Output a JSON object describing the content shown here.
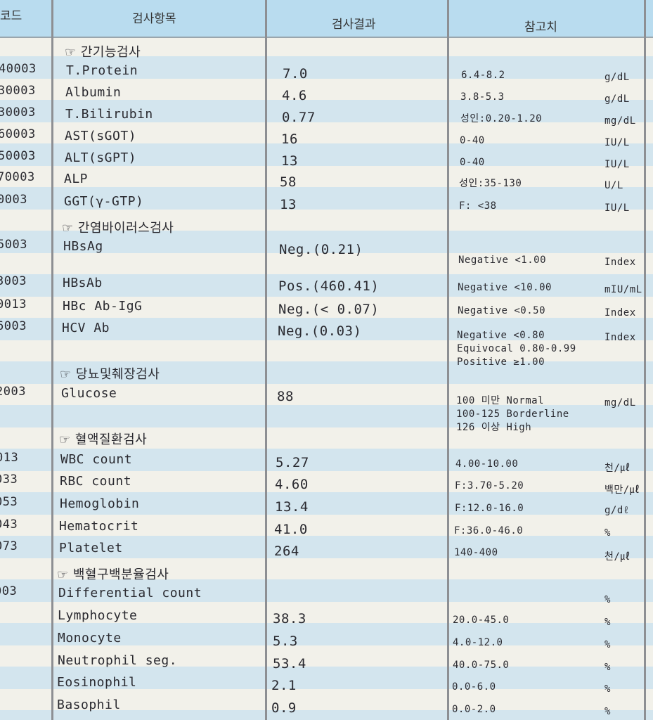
{
  "header": {
    "code": "코드",
    "item": "검사항목",
    "result": "검사결과",
    "reference": "참고치"
  },
  "section_icon": "pointing-hand-icon",
  "rows": [
    {
      "type": "section",
      "label": "☞ 간기능검사"
    },
    {
      "type": "item",
      "code": "40003",
      "item": "T.Protein",
      "result": "7.0",
      "ref": "6.4-8.2",
      "unit": "g/dL"
    },
    {
      "type": "item",
      "code": "30003",
      "item": "Albumin",
      "result": "4.6",
      "ref": "3.8-5.3",
      "unit": "g/dL"
    },
    {
      "type": "item",
      "code": "30003",
      "item": "T.Bilirubin",
      "result": "0.77",
      "ref": "성인:0.20-1.20",
      "unit": "mg/dL"
    },
    {
      "type": "item",
      "code": "60003",
      "item": "AST(sGOT)",
      "result": "16",
      "ref": "0-40",
      "unit": "IU/L"
    },
    {
      "type": "item",
      "code": "50003",
      "item": "ALT(sGPT)",
      "result": "13",
      "ref": "0-40",
      "unit": "IU/L"
    },
    {
      "type": "item",
      "code": "70003",
      "item": "ALP",
      "result": "58",
      "ref": "성인:35-130",
      "unit": "U/L"
    },
    {
      "type": "item",
      "code": "0003",
      "item": "GGT(γ-GTP)",
      "result": "13",
      "ref": "F: <38",
      "unit": "IU/L"
    },
    {
      "type": "section",
      "label": "☞ 간염바이러스검사"
    },
    {
      "type": "item",
      "code": "5003",
      "item": "HBsAg",
      "result": "Neg.(0.21)",
      "ref": "Negative <1.00",
      "unit": "Index"
    },
    {
      "type": "item",
      "code": "3003",
      "item": "HBsAb",
      "result": "Pos.(460.41)",
      "ref": "Negative <10.00",
      "unit": "mIU/mL"
    },
    {
      "type": "item",
      "code": "0013",
      "item": "HBc Ab-IgG",
      "result": "Neg.(< 0.07)",
      "ref": "Negative <0.50",
      "unit": "Index"
    },
    {
      "type": "item",
      "code": "6003",
      "item": "HCV Ab",
      "result": "Neg.(0.03)",
      "ref": "Negative <0.80\nEquivocal 0.80-0.99\nPositive ≥1.00",
      "unit": "Index"
    },
    {
      "type": "section",
      "label": "☞ 당뇨및췌장검사"
    },
    {
      "type": "item",
      "code": "2003",
      "item": "Glucose",
      "result": "88",
      "ref": "100 미만 Normal\n100-125 Borderline\n126 이상 High",
      "unit": "mg/dL"
    },
    {
      "type": "section",
      "label": "☞ 혈액질환검사"
    },
    {
      "type": "item",
      "code": "013",
      "item": "WBC count",
      "result": "5.27",
      "ref": "4.00-10.00",
      "unit": "천/㎕"
    },
    {
      "type": "item",
      "code": "033",
      "item": "RBC count",
      "result": "4.60",
      "ref": "F:3.70-5.20",
      "unit": "백만/㎕"
    },
    {
      "type": "item",
      "code": "053",
      "item": "Hemoglobin",
      "result": "13.4",
      "ref": "F:12.0-16.0",
      "unit": "g/dℓ"
    },
    {
      "type": "item",
      "code": "043",
      "item": "Hematocrit",
      "result": "41.0",
      "ref": "F:36.0-46.0",
      "unit": "%"
    },
    {
      "type": "item",
      "code": "073",
      "item": "Platelet",
      "result": "264",
      "ref": "140-400",
      "unit": "천/㎕"
    },
    {
      "type": "section",
      "label": "☞ 백혈구백분율검사"
    },
    {
      "type": "item",
      "code": "003",
      "item": "Differential count",
      "result": "",
      "ref": "",
      "unit": "%"
    },
    {
      "type": "item",
      "code": "",
      "item": "Lymphocyte",
      "result": "38.3",
      "ref": "20.0-45.0",
      "unit": "%"
    },
    {
      "type": "item",
      "code": "",
      "item": "Monocyte",
      "result": "5.3",
      "ref": "4.0-12.0",
      "unit": "%"
    },
    {
      "type": "item",
      "code": "",
      "item": "Neutrophil seg.",
      "result": "53.4",
      "ref": "40.0-75.0",
      "unit": "%"
    },
    {
      "type": "item",
      "code": "",
      "item": "Eosinophil",
      "result": "2.1",
      "ref": "0.0-6.0",
      "unit": "%"
    },
    {
      "type": "item",
      "code": "",
      "item": "Basophil",
      "result": "0.9",
      "ref": "0.0-2.0",
      "unit": "%"
    }
  ]
}
